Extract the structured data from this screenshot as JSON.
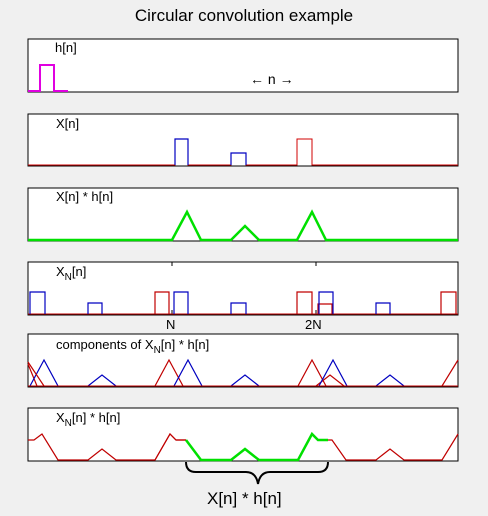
{
  "title": "Circular convolution example",
  "labels": {
    "panel1": "h[n]",
    "axis_arrow": "← n →",
    "panel2": "X[n]",
    "panel3": "X[n] * h[n]",
    "panel4_base": "X",
    "panel4_sub": "N",
    "panel4_rest": "[n]",
    "panel5_pre": "components of X",
    "panel5_sub": "N",
    "panel5_rest": "[n] * h[n]",
    "panel6_base": "X",
    "panel6_sub": "N",
    "panel6_rest": "[n] * h[n]",
    "tick_N": "N",
    "tick_2N": "2N",
    "brace_label": "X[n] * h[n]"
  },
  "colors": {
    "h": "#e000e0",
    "x_base": "#d00000",
    "x_blue": "#0000c0",
    "conv": "#00e000",
    "alias": "#c00000",
    "axis": "#000000"
  }
}
